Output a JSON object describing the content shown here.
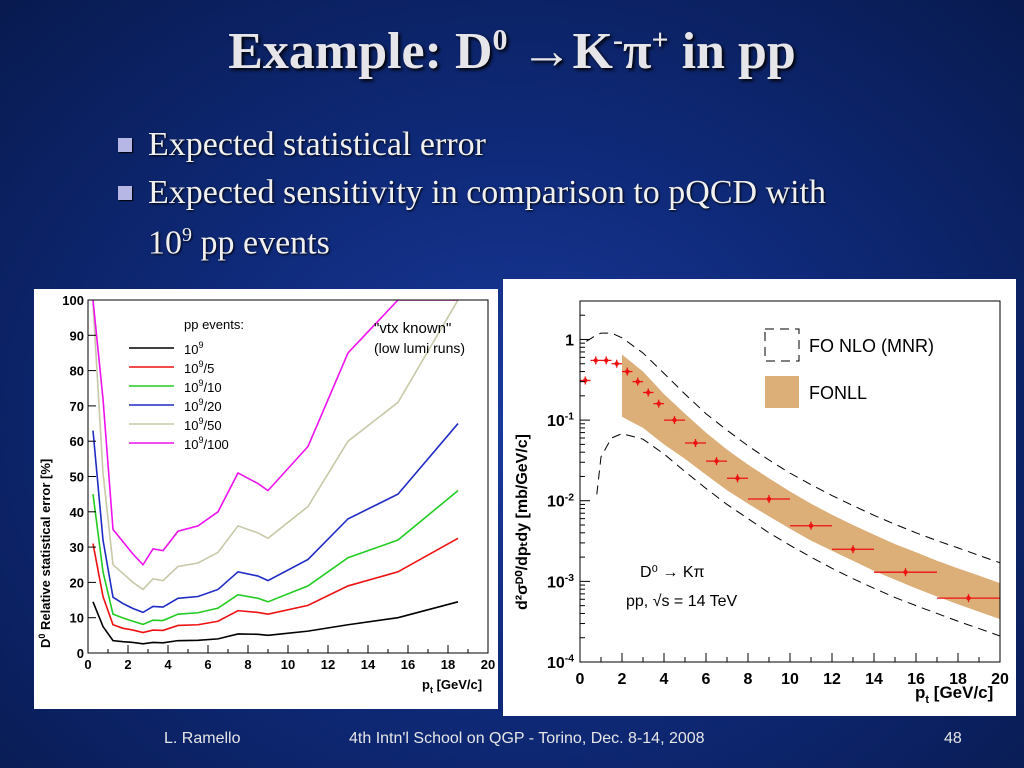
{
  "slide": {
    "title_main": "Example: D",
    "title_sup0": "0",
    "title_arrow": "→",
    "title_k": "K",
    "title_kminus": "-",
    "title_pi": "π",
    "title_piplus": "+",
    "title_rest": " in pp",
    "bullets": [
      {
        "text": "Expected statistical error"
      },
      {
        "text": "Expected sensitivity in comparison to pQCD with",
        "line2_pre": "10",
        "line2_sup": "9",
        "line2_post": " pp events"
      }
    ],
    "footer": {
      "author": "L. Ramello",
      "event": "4th Intn'l School on QGP  - Torino, Dec. 8-14, 2008",
      "page": "48"
    },
    "colors": {
      "bg": "#0f2a7a",
      "title": "#e6e6ea",
      "bullet_square": "#b7b7e6"
    }
  },
  "chart_data": [
    {
      "type": "line",
      "ylabel_pre": "D",
      "ylabel_sup": "0",
      "ylabel_post": " Relative statistical error [%]",
      "xlabel": "p",
      "xlabel_sub": "t",
      "xlabel_unit": " [GeV/c]",
      "xlim": [
        0,
        20
      ],
      "ylim": [
        0,
        100
      ],
      "xticks": [
        0,
        2,
        4,
        6,
        8,
        10,
        12,
        14,
        16,
        18,
        20
      ],
      "yticks": [
        0,
        10,
        20,
        30,
        40,
        50,
        60,
        70,
        80,
        90,
        100
      ],
      "legend_title": "pp events:",
      "annotation_1": "\"vtx known\"",
      "annotation_2": "(low lumi runs)",
      "x": [
        0.25,
        0.75,
        1.25,
        1.75,
        2.25,
        2.75,
        3.25,
        3.75,
        4.5,
        5.5,
        6.5,
        7.5,
        8.5,
        9.0,
        11.0,
        13.0,
        15.5,
        18.5
      ],
      "series": [
        {
          "name_base": "10",
          "name_sup": "9",
          "name_post": "",
          "color": "#000000",
          "values": [
            14.5,
            7.5,
            3.5,
            3.2,
            3.0,
            2.6,
            3.0,
            2.9,
            3.5,
            3.6,
            4.0,
            5.4,
            5.3,
            5.0,
            6.2,
            8.0,
            10.0,
            14.5
          ]
        },
        {
          "name_base": "10",
          "name_sup": "9",
          "name_post": "/5",
          "color": "#ee1111",
          "values": [
            31,
            16,
            8.0,
            7.0,
            6.5,
            5.8,
            6.5,
            6.4,
            7.8,
            8.0,
            9.0,
            12.0,
            11.5,
            11.0,
            13.5,
            19.0,
            23.0,
            32.5
          ]
        },
        {
          "name_base": "10",
          "name_sup": "9",
          "name_post": "/10",
          "color": "#22cc22",
          "values": [
            45,
            23,
            11.0,
            9.9,
            9.0,
            8.1,
            9.3,
            9.2,
            11.0,
            11.4,
            12.7,
            16.5,
            15.5,
            14.5,
            19.0,
            27.0,
            32.0,
            46.0
          ]
        },
        {
          "name_base": "10",
          "name_sup": "9",
          "name_post": "/20",
          "color": "#1f2cc4",
          "values": [
            63,
            32,
            15.8,
            14.0,
            12.6,
            11.5,
            13.2,
            13.0,
            15.5,
            16.0,
            18.0,
            23.0,
            21.8,
            20.5,
            26.5,
            38.0,
            45.0,
            65.0
          ]
        },
        {
          "name_base": "10",
          "name_sup": "9",
          "name_post": "/50",
          "color": "#c8c8a8",
          "values": [
            99,
            51,
            25.0,
            22.5,
            20.0,
            18.0,
            21.0,
            20.5,
            24.5,
            25.5,
            28.5,
            36.0,
            34.0,
            32.5,
            41.5,
            60.0,
            71.0,
            100
          ]
        },
        {
          "name_base": "10",
          "name_sup": "9",
          "name_post": "/100",
          "color": "#ee11ee",
          "values": [
            100,
            72,
            35.0,
            31.5,
            28.0,
            25.0,
            29.5,
            29.0,
            34.5,
            36.0,
            40.0,
            51.0,
            48.0,
            46.0,
            58.5,
            85.0,
            100,
            100
          ]
        }
      ]
    },
    {
      "type": "scatter",
      "scale": "log-y",
      "ylabel": "d²σᴰ⁰/dpₜdy [mb/GeV/c]",
      "xlabel": "p",
      "xlabel_sub": "t",
      "xlabel_unit": " [GeV/c]",
      "xlim": [
        0,
        20
      ],
      "ylim": [
        0.0001,
        3
      ],
      "xticks": [
        0,
        2,
        4,
        6,
        8,
        10,
        12,
        14,
        16,
        18,
        20
      ],
      "yticks": [
        {
          "base": "1",
          "sup": ""
        },
        {
          "base": "10",
          "sup": "-1"
        },
        {
          "base": "10",
          "sup": "-2"
        },
        {
          "base": "10",
          "sup": "-3"
        },
        {
          "base": "10",
          "sup": "-4"
        }
      ],
      "legend": [
        {
          "label": "FO NLO (MNR)",
          "style": "dashed-box"
        },
        {
          "label": "FONLL",
          "style": "band",
          "color": "#dcae78"
        }
      ],
      "annotation_process": "D⁰ → Kπ",
      "annotation_energy": "pp, √s = 14 TeV",
      "data": {
        "x": [
          0.25,
          0.75,
          1.25,
          1.75,
          2.25,
          2.75,
          3.25,
          3.75,
          4.5,
          5.5,
          6.5,
          7.5,
          9.0,
          11.0,
          13.0,
          15.5,
          18.5
        ],
        "xerr": [
          0.25,
          0.25,
          0.25,
          0.25,
          0.25,
          0.25,
          0.25,
          0.25,
          0.5,
          0.5,
          0.5,
          0.5,
          1.0,
          1.0,
          1.0,
          1.5,
          1.5
        ],
        "y": [
          0.31,
          0.55,
          0.55,
          0.5,
          0.4,
          0.3,
          0.22,
          0.16,
          0.1,
          0.052,
          0.031,
          0.019,
          0.0105,
          0.0049,
          0.0025,
          0.0013,
          0.00062
        ],
        "color": "#ee1111"
      },
      "fonll_band": {
        "x": [
          2,
          3,
          4,
          5,
          6,
          7,
          8,
          9,
          10,
          11,
          12,
          13,
          14,
          15,
          16,
          17,
          18,
          19,
          20
        ],
        "y_low": [
          0.11,
          0.08,
          0.05,
          0.033,
          0.021,
          0.0135,
          0.0092,
          0.0064,
          0.0045,
          0.0032,
          0.0024,
          0.0018,
          0.00135,
          0.00105,
          0.00082,
          0.00065,
          0.00052,
          0.00042,
          0.00034
        ],
        "y_high": [
          0.65,
          0.4,
          0.21,
          0.12,
          0.07,
          0.043,
          0.028,
          0.019,
          0.013,
          0.0092,
          0.0067,
          0.005,
          0.0038,
          0.0029,
          0.0023,
          0.0018,
          0.00145,
          0.00118,
          0.00095
        ]
      },
      "mnr_upper": {
        "x": [
          0.3,
          0.7,
          1.0,
          1.5,
          2,
          3,
          4,
          5,
          6,
          7,
          8,
          9,
          10,
          11,
          12,
          13,
          14,
          15,
          16,
          17,
          18,
          19,
          20
        ],
        "y": [
          0.95,
          1.1,
          1.2,
          1.2,
          1.05,
          0.68,
          0.38,
          0.21,
          0.12,
          0.075,
          0.048,
          0.032,
          0.022,
          0.0158,
          0.0116,
          0.0087,
          0.0066,
          0.0051,
          0.004,
          0.0032,
          0.0026,
          0.0021,
          0.0017
        ]
      },
      "mnr_lower": {
        "x": [
          0.8,
          1.0,
          1.5,
          2,
          3,
          4,
          5,
          6,
          7,
          8,
          9,
          10,
          11,
          12,
          13,
          14,
          15,
          16,
          17,
          18,
          19,
          20
        ],
        "y": [
          0.012,
          0.035,
          0.06,
          0.068,
          0.058,
          0.038,
          0.023,
          0.0142,
          0.009,
          0.006,
          0.004,
          0.0028,
          0.002,
          0.00145,
          0.00108,
          0.00082,
          0.00063,
          0.0005,
          0.0004,
          0.00032,
          0.00026,
          0.00021
        ]
      }
    }
  ]
}
